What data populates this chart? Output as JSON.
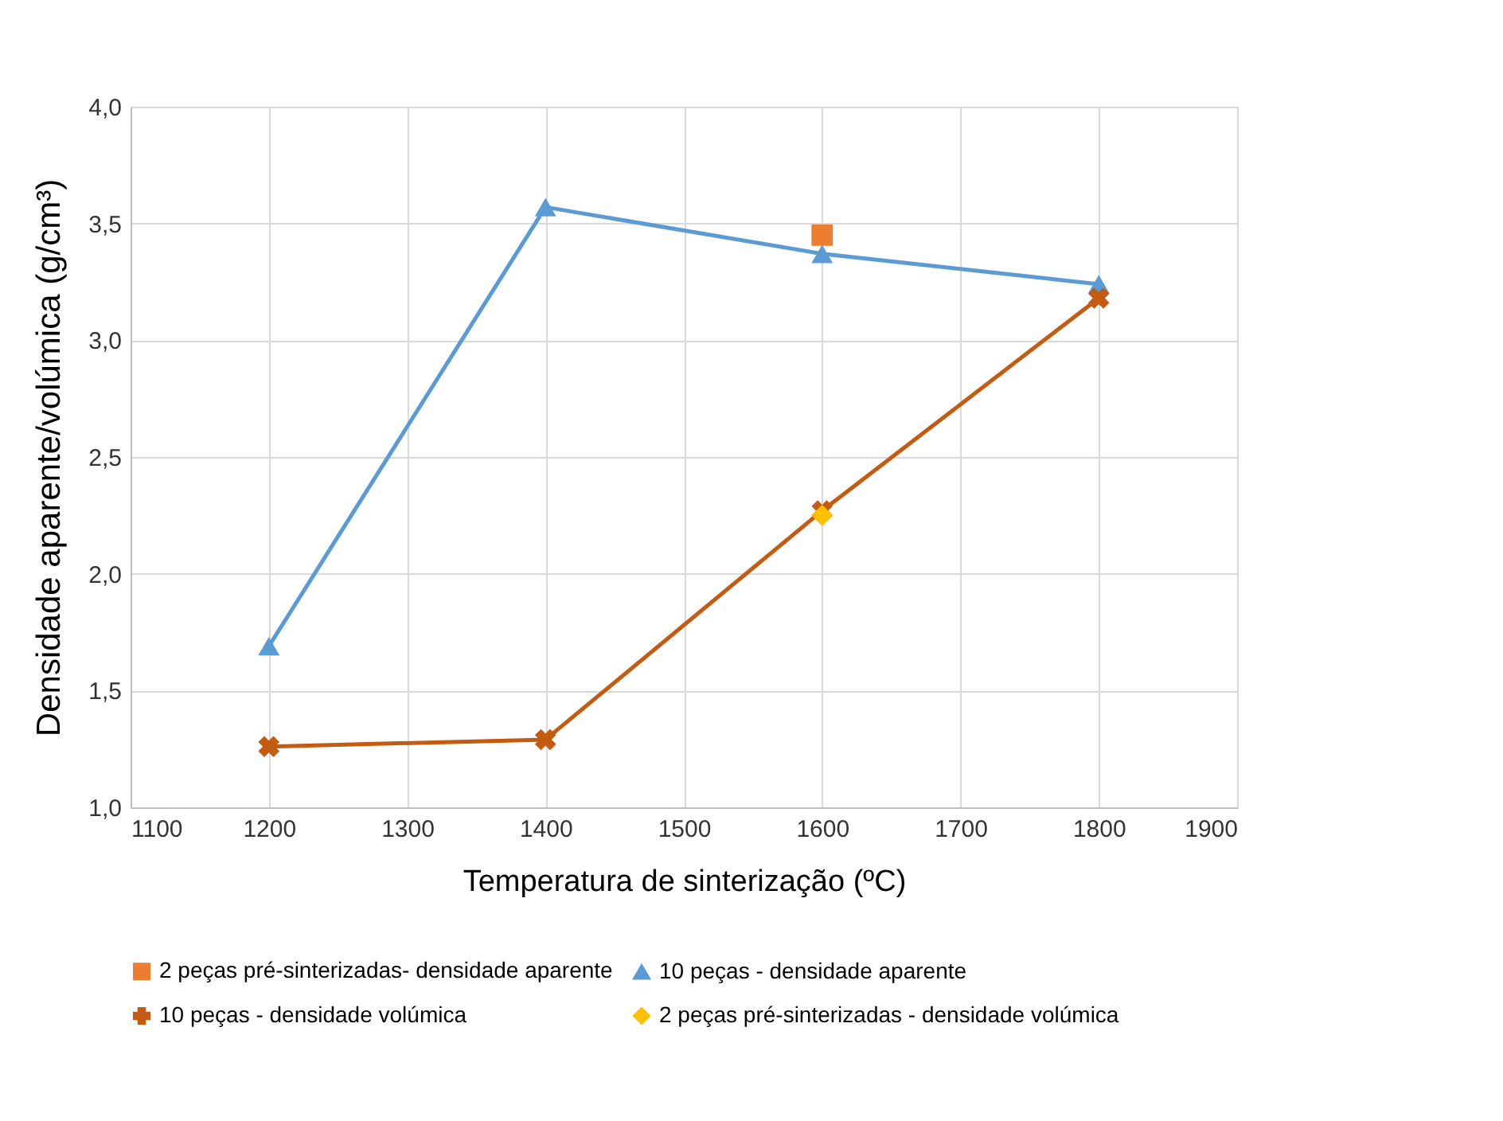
{
  "chart_data": {
    "type": "line",
    "xlabel": "Temperatura de sinterização (ºC)",
    "ylabel": "Densidade aparente/volúmica (g/cm³)",
    "xlim": [
      1100,
      1900
    ],
    "xticks": [
      1100,
      1200,
      1300,
      1400,
      1500,
      1600,
      1700,
      1800,
      1900
    ],
    "ylim": [
      1.0,
      4.0
    ],
    "yticks": [
      {
        "value": 1.0,
        "label": "1,0"
      },
      {
        "value": 1.5,
        "label": "1,5"
      },
      {
        "value": 2.0,
        "label": "2,0"
      },
      {
        "value": 2.5,
        "label": "2,5"
      },
      {
        "value": 3.0,
        "label": "3,0"
      },
      {
        "value": 3.5,
        "label": "3,5"
      },
      {
        "value": 4.0,
        "label": "4,0"
      }
    ],
    "grid": true,
    "legend": "bottom",
    "series": [
      {
        "name": "2 peças pré-sinterizadas- densidade aparente",
        "color": "#ed7d31",
        "marker": "square",
        "x": [
          1600
        ],
        "values": [
          3.45
        ]
      },
      {
        "name": "10 peças -  densidade aparente",
        "color": "#5b9bd5",
        "marker": "triangle",
        "x": [
          1200,
          1400,
          1600,
          1800
        ],
        "values": [
          1.69,
          3.57,
          3.37,
          3.24
        ]
      },
      {
        "name": "10 peças - densidade volúmica",
        "color": "#c55a11",
        "marker": "cross",
        "x": [
          1200,
          1400,
          1600,
          1800
        ],
        "values": [
          1.26,
          1.29,
          2.27,
          3.18
        ]
      },
      {
        "name": "2 peças pré-sinterizadas - densidade volúmica",
        "color": "#ffc000",
        "marker": "diamond",
        "x": [
          1600
        ],
        "values": [
          2.25
        ]
      }
    ]
  }
}
